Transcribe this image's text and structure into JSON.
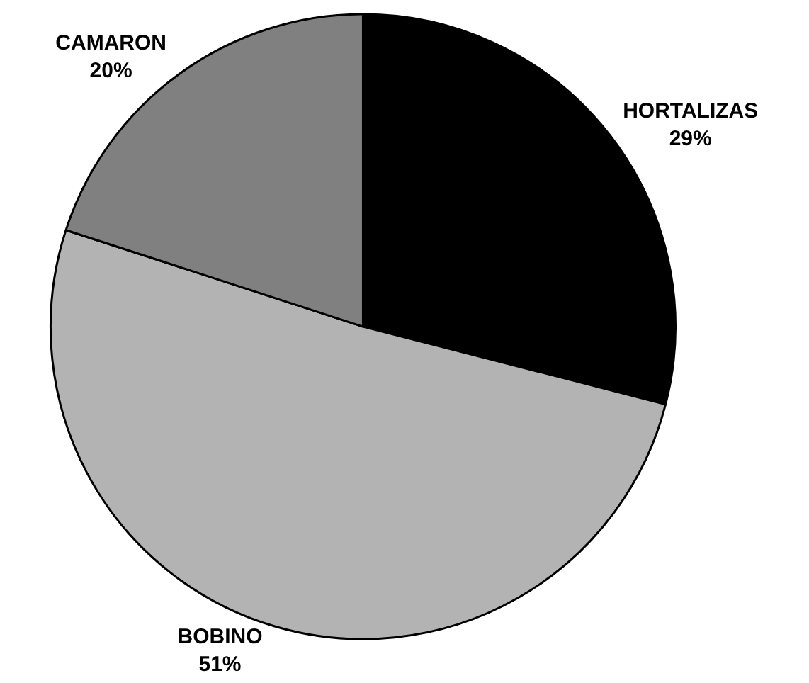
{
  "chart_data": {
    "type": "pie",
    "categories": [
      "HORTALIZAS",
      "BOBINO",
      "CAMARON"
    ],
    "values": [
      29,
      51,
      20
    ],
    "colors": [
      "#000000",
      "#b3b3b3",
      "#808080"
    ],
    "value_labels": [
      "29%",
      "51%",
      "20%"
    ],
    "legend": false
  }
}
